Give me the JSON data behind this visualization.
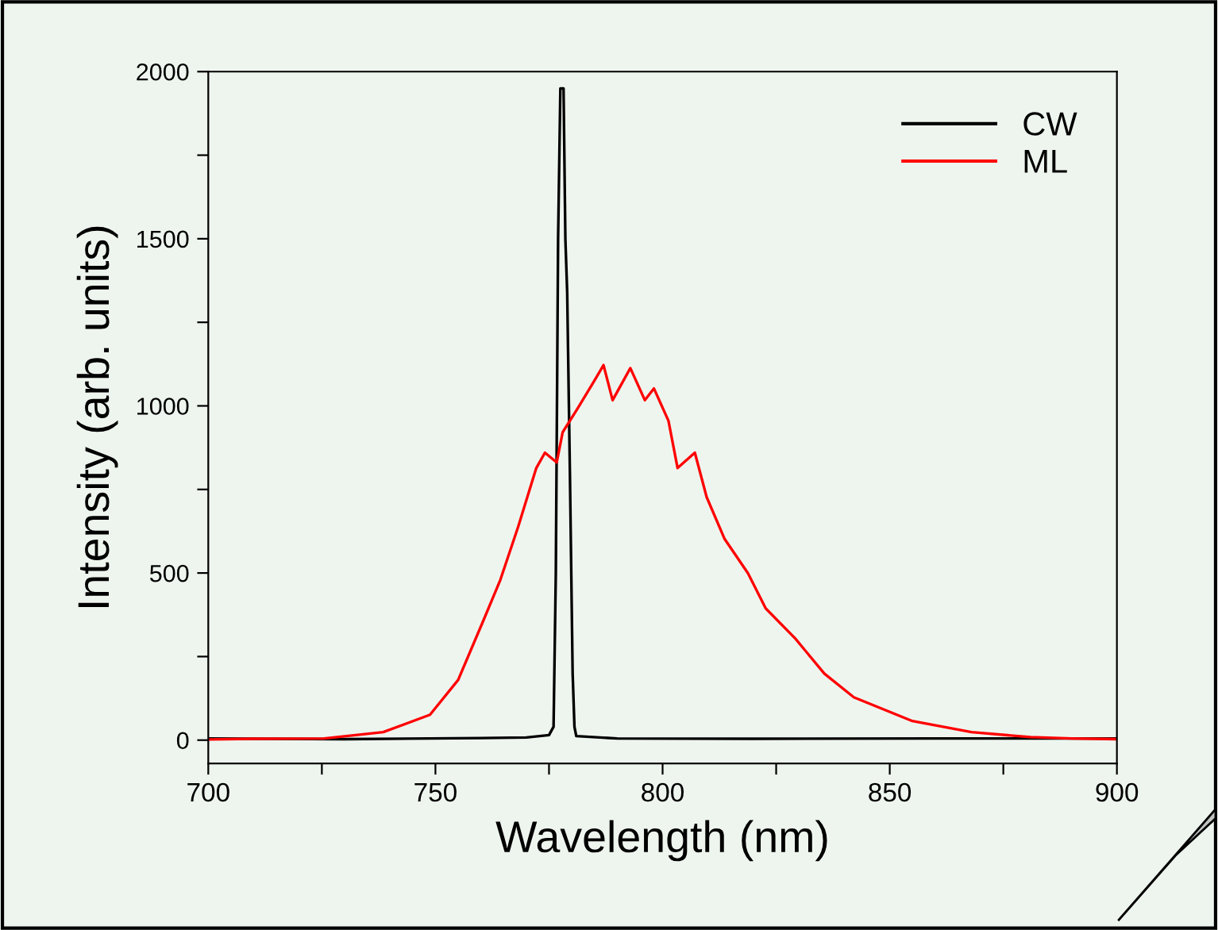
{
  "chart_data": {
    "type": "line",
    "xlabel": "Wavelength (nm)",
    "ylabel": "Intensity (arb. units)",
    "xlim": [
      700,
      900
    ],
    "ylim": [
      -70,
      2000
    ],
    "xticks": [
      700,
      {
        "value": 725,
        "label": null
      },
      750,
      {
        "value": 775,
        "label": null
      },
      800,
      {
        "value": 825,
        "label": null
      },
      850,
      {
        "value": 875,
        "label": null
      },
      900
    ],
    "yticks": [
      0,
      {
        "value": 250,
        "label": null
      },
      500,
      {
        "value": 750,
        "label": null
      },
      1000,
      {
        "value": 1250,
        "label": null
      },
      1500,
      {
        "value": 1750,
        "label": null
      },
      2000
    ],
    "grid": false,
    "legend": "top right",
    "line_style": "solid",
    "marker": "none",
    "series": [
      {
        "name": "CW",
        "color": "#000000",
        "x": [
          700,
          730,
          760,
          770,
          775,
          776,
          776.5,
          777,
          777.5,
          778.2,
          778.6,
          779,
          779.6,
          780.2,
          780.6,
          781,
          790,
          820,
          860,
          900
        ],
        "values": [
          5,
          3,
          6,
          8,
          15,
          40,
          500,
          1500,
          1950,
          1950,
          1500,
          1340,
          800,
          200,
          40,
          12,
          5,
          4,
          5,
          5
        ]
      },
      {
        "name": "ML",
        "color": "#ff0000",
        "x": [
          700,
          710,
          725.5,
          738.5,
          748.8,
          755,
          760.5,
          764.3,
          768.2,
          772.2,
          774.1,
          776.7,
          778,
          781.2,
          785.1,
          787,
          789,
          792.9,
          796.1,
          798.1,
          801.3,
          803.3,
          807.1,
          809.7,
          813.6,
          818.8,
          822.7,
          829.2,
          835.6,
          842.1,
          855,
          868,
          881,
          890,
          900
        ],
        "values": [
          2,
          4,
          5,
          24,
          76,
          180,
          356,
          480,
          638,
          814,
          860,
          831,
          921,
          990,
          1078,
          1122,
          1017,
          1113,
          1017,
          1052,
          955,
          814,
          860,
          727,
          603,
          499,
          394,
          304,
          199,
          128,
          57,
          24,
          9,
          5,
          3
        ]
      }
    ]
  }
}
